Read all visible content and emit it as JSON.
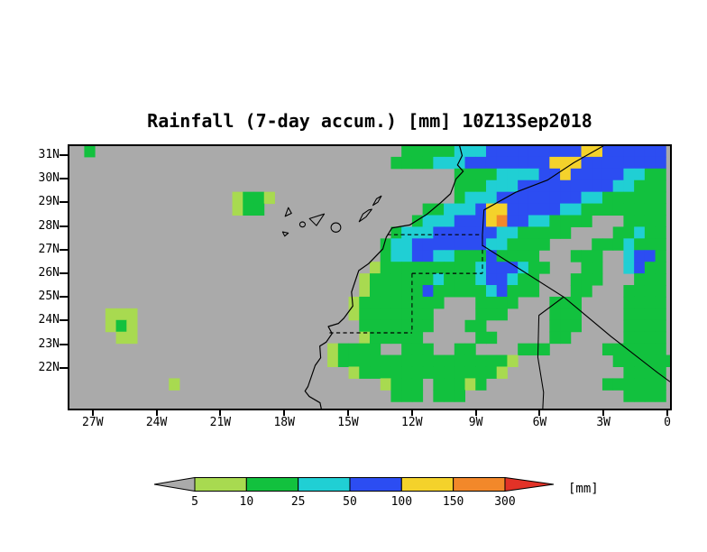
{
  "chart_data": {
    "type": "heatmap",
    "title": "Rainfall (7-day accum.) [mm] 10Z13Sep2018",
    "variable": "Rainfall (7-day accum.)",
    "datetime": "10Z13Sep2018",
    "units": "mm",
    "units_label": "[mm]",
    "map_region": "Northwest Africa, Canary Islands, western Sahara region",
    "lon_range": [
      -28.2,
      0.2
    ],
    "lat_range": [
      20.2,
      31.46
    ],
    "x_axis": {
      "ticks": [
        {
          "label": "27W",
          "lon": -27
        },
        {
          "label": "24W",
          "lon": -24
        },
        {
          "label": "21W",
          "lon": -21
        },
        {
          "label": "18W",
          "lon": -18
        },
        {
          "label": "15W",
          "lon": -15
        },
        {
          "label": "12W",
          "lon": -12
        },
        {
          "label": "9W",
          "lon": -9
        },
        {
          "label": "6W",
          "lon": -6
        },
        {
          "label": "3W",
          "lon": -3
        },
        {
          "label": "0",
          "lon": 0
        }
      ]
    },
    "y_axis": {
      "ticks": [
        {
          "label": "31N",
          "lat": 31
        },
        {
          "label": "30N",
          "lat": 30
        },
        {
          "label": "29N",
          "lat": 29
        },
        {
          "label": "28N",
          "lat": 28
        },
        {
          "label": "27N",
          "lat": 27
        },
        {
          "label": "26N",
          "lat": 26
        },
        {
          "label": "25N",
          "lat": 25
        },
        {
          "label": "24N",
          "lat": 24
        },
        {
          "label": "23N",
          "lat": 23
        },
        {
          "label": "22N",
          "lat": 22
        }
      ]
    },
    "levels_mm": [
      5,
      10,
      25,
      50,
      100,
      150,
      300
    ],
    "legend_labels": [
      "5",
      "10",
      "25",
      "50",
      "100",
      "150",
      "300"
    ],
    "palette": [
      "#aaaaaa",
      "#a8da50",
      "#12c13e",
      "#20cfd4",
      "#2c4df2",
      "#f4d22b",
      "#f2882a",
      "#e23227"
    ],
    "palette_meaning": [
      "<5",
      "5-10",
      "10-25",
      "25-50",
      "50-100",
      "100-150",
      "150-300",
      ">300"
    ],
    "grid": {
      "comment": "0.5 degree cells; digit = palette index; col 0 at lon -28 (west), row 0 at lat 31.5 (north)",
      "lon_start": -28,
      "lat_top": 31.5,
      "cell_deg": 0.5,
      "rows": [
        "02000000000000000000000000000002222233344444444455444444",
        "00000000000000000000000000000022223334444444455544444444",
        "00000000000000000000000000000000000022223333445444443322",
        "00000000000000000000000000000000000022233344444444433222",
        "00000000000000012210000000000000000023334444444433222222",
        "00000000000000012200000000000000022333455444443322222222",
        "00000000000000000000000000000000233344456443322220002222",
        "00000000000000000000000000000023334444443322222000022322",
        "00000000000000000000000000000233444444433222200002223222",
        "00000000000000000000000000000233443322242222000222003442",
        "00000000000000000000000000001222222222344432200022003422",
        "00000000000000000000000000012222223222344322000222000222",
        "00000000000000000000000000012222242222234222000220002222",
        "00000000000000000000000000122222222000222200022200002222",
        "00011100000000000000000000122222220000222000022200 0 02222",
        "00012100000000000000000000022222220002200000022200002222",
        "00001100000000000000000000012222200000220000022000002222",
        "00000000000000000000000012222002220022000022200000222222",
        "00000000000000000000000012222222222222222100000000 0222222",
        "00000000000000000000000000122222222222221000000000002222",
        "00000000010000000000000000000122202221200000000000222222",
        "00000000000000000000000000000022202220000000000000002222"
      ]
    }
  }
}
